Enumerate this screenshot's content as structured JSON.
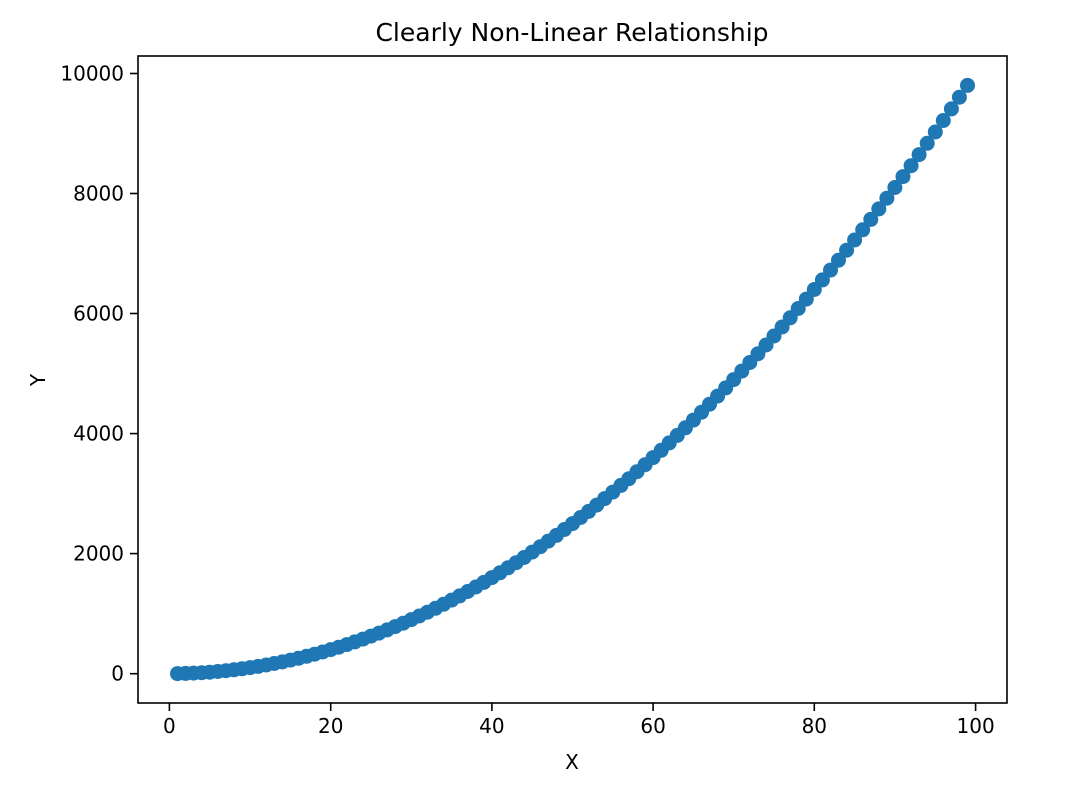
{
  "chart_data": {
    "type": "scatter",
    "title": "Clearly Non-Linear Relationship",
    "xlabel": "X",
    "ylabel": "Y",
    "marker_color": "#1f77b4",
    "background_color": "#ffffff",
    "grid": false,
    "legend": "none",
    "xlim": [
      -3.9,
      103.9
    ],
    "ylim": [
      -489,
      10291
    ],
    "xticks": [
      0,
      20,
      40,
      60,
      80,
      100
    ],
    "yticks": [
      0,
      2000,
      4000,
      6000,
      8000,
      10000
    ],
    "x": [
      1,
      2,
      3,
      4,
      5,
      6,
      7,
      8,
      9,
      10,
      11,
      12,
      13,
      14,
      15,
      16,
      17,
      18,
      19,
      20,
      21,
      22,
      23,
      24,
      25,
      26,
      27,
      28,
      29,
      30,
      31,
      32,
      33,
      34,
      35,
      36,
      37,
      38,
      39,
      40,
      41,
      42,
      43,
      44,
      45,
      46,
      47,
      48,
      49,
      50,
      51,
      52,
      53,
      54,
      55,
      56,
      57,
      58,
      59,
      60,
      61,
      62,
      63,
      64,
      65,
      66,
      67,
      68,
      69,
      70,
      71,
      72,
      73,
      74,
      75,
      76,
      77,
      78,
      79,
      80,
      81,
      82,
      83,
      84,
      85,
      86,
      87,
      88,
      89,
      90,
      91,
      92,
      93,
      94,
      95,
      96,
      97,
      98,
      99
    ],
    "y": [
      1,
      4,
      9,
      16,
      25,
      36,
      49,
      64,
      81,
      100,
      121,
      144,
      169,
      196,
      225,
      256,
      289,
      324,
      361,
      400,
      441,
      484,
      529,
      576,
      625,
      676,
      729,
      784,
      841,
      900,
      961,
      1024,
      1089,
      1156,
      1225,
      1296,
      1369,
      1444,
      1521,
      1600,
      1681,
      1764,
      1849,
      1936,
      2025,
      2116,
      2209,
      2304,
      2401,
      2500,
      2601,
      2704,
      2809,
      2916,
      3025,
      3136,
      3249,
      3364,
      3481,
      3600,
      3721,
      3844,
      3969,
      4096,
      4225,
      4356,
      4489,
      4624,
      4761,
      4900,
      5041,
      5184,
      5329,
      5476,
      5625,
      5776,
      5929,
      6084,
      6241,
      6400,
      6561,
      6724,
      6889,
      7056,
      7225,
      7396,
      7569,
      7744,
      7921,
      8100,
      8281,
      8464,
      8649,
      8836,
      9025,
      9216,
      9409,
      9604,
      9801
    ]
  }
}
